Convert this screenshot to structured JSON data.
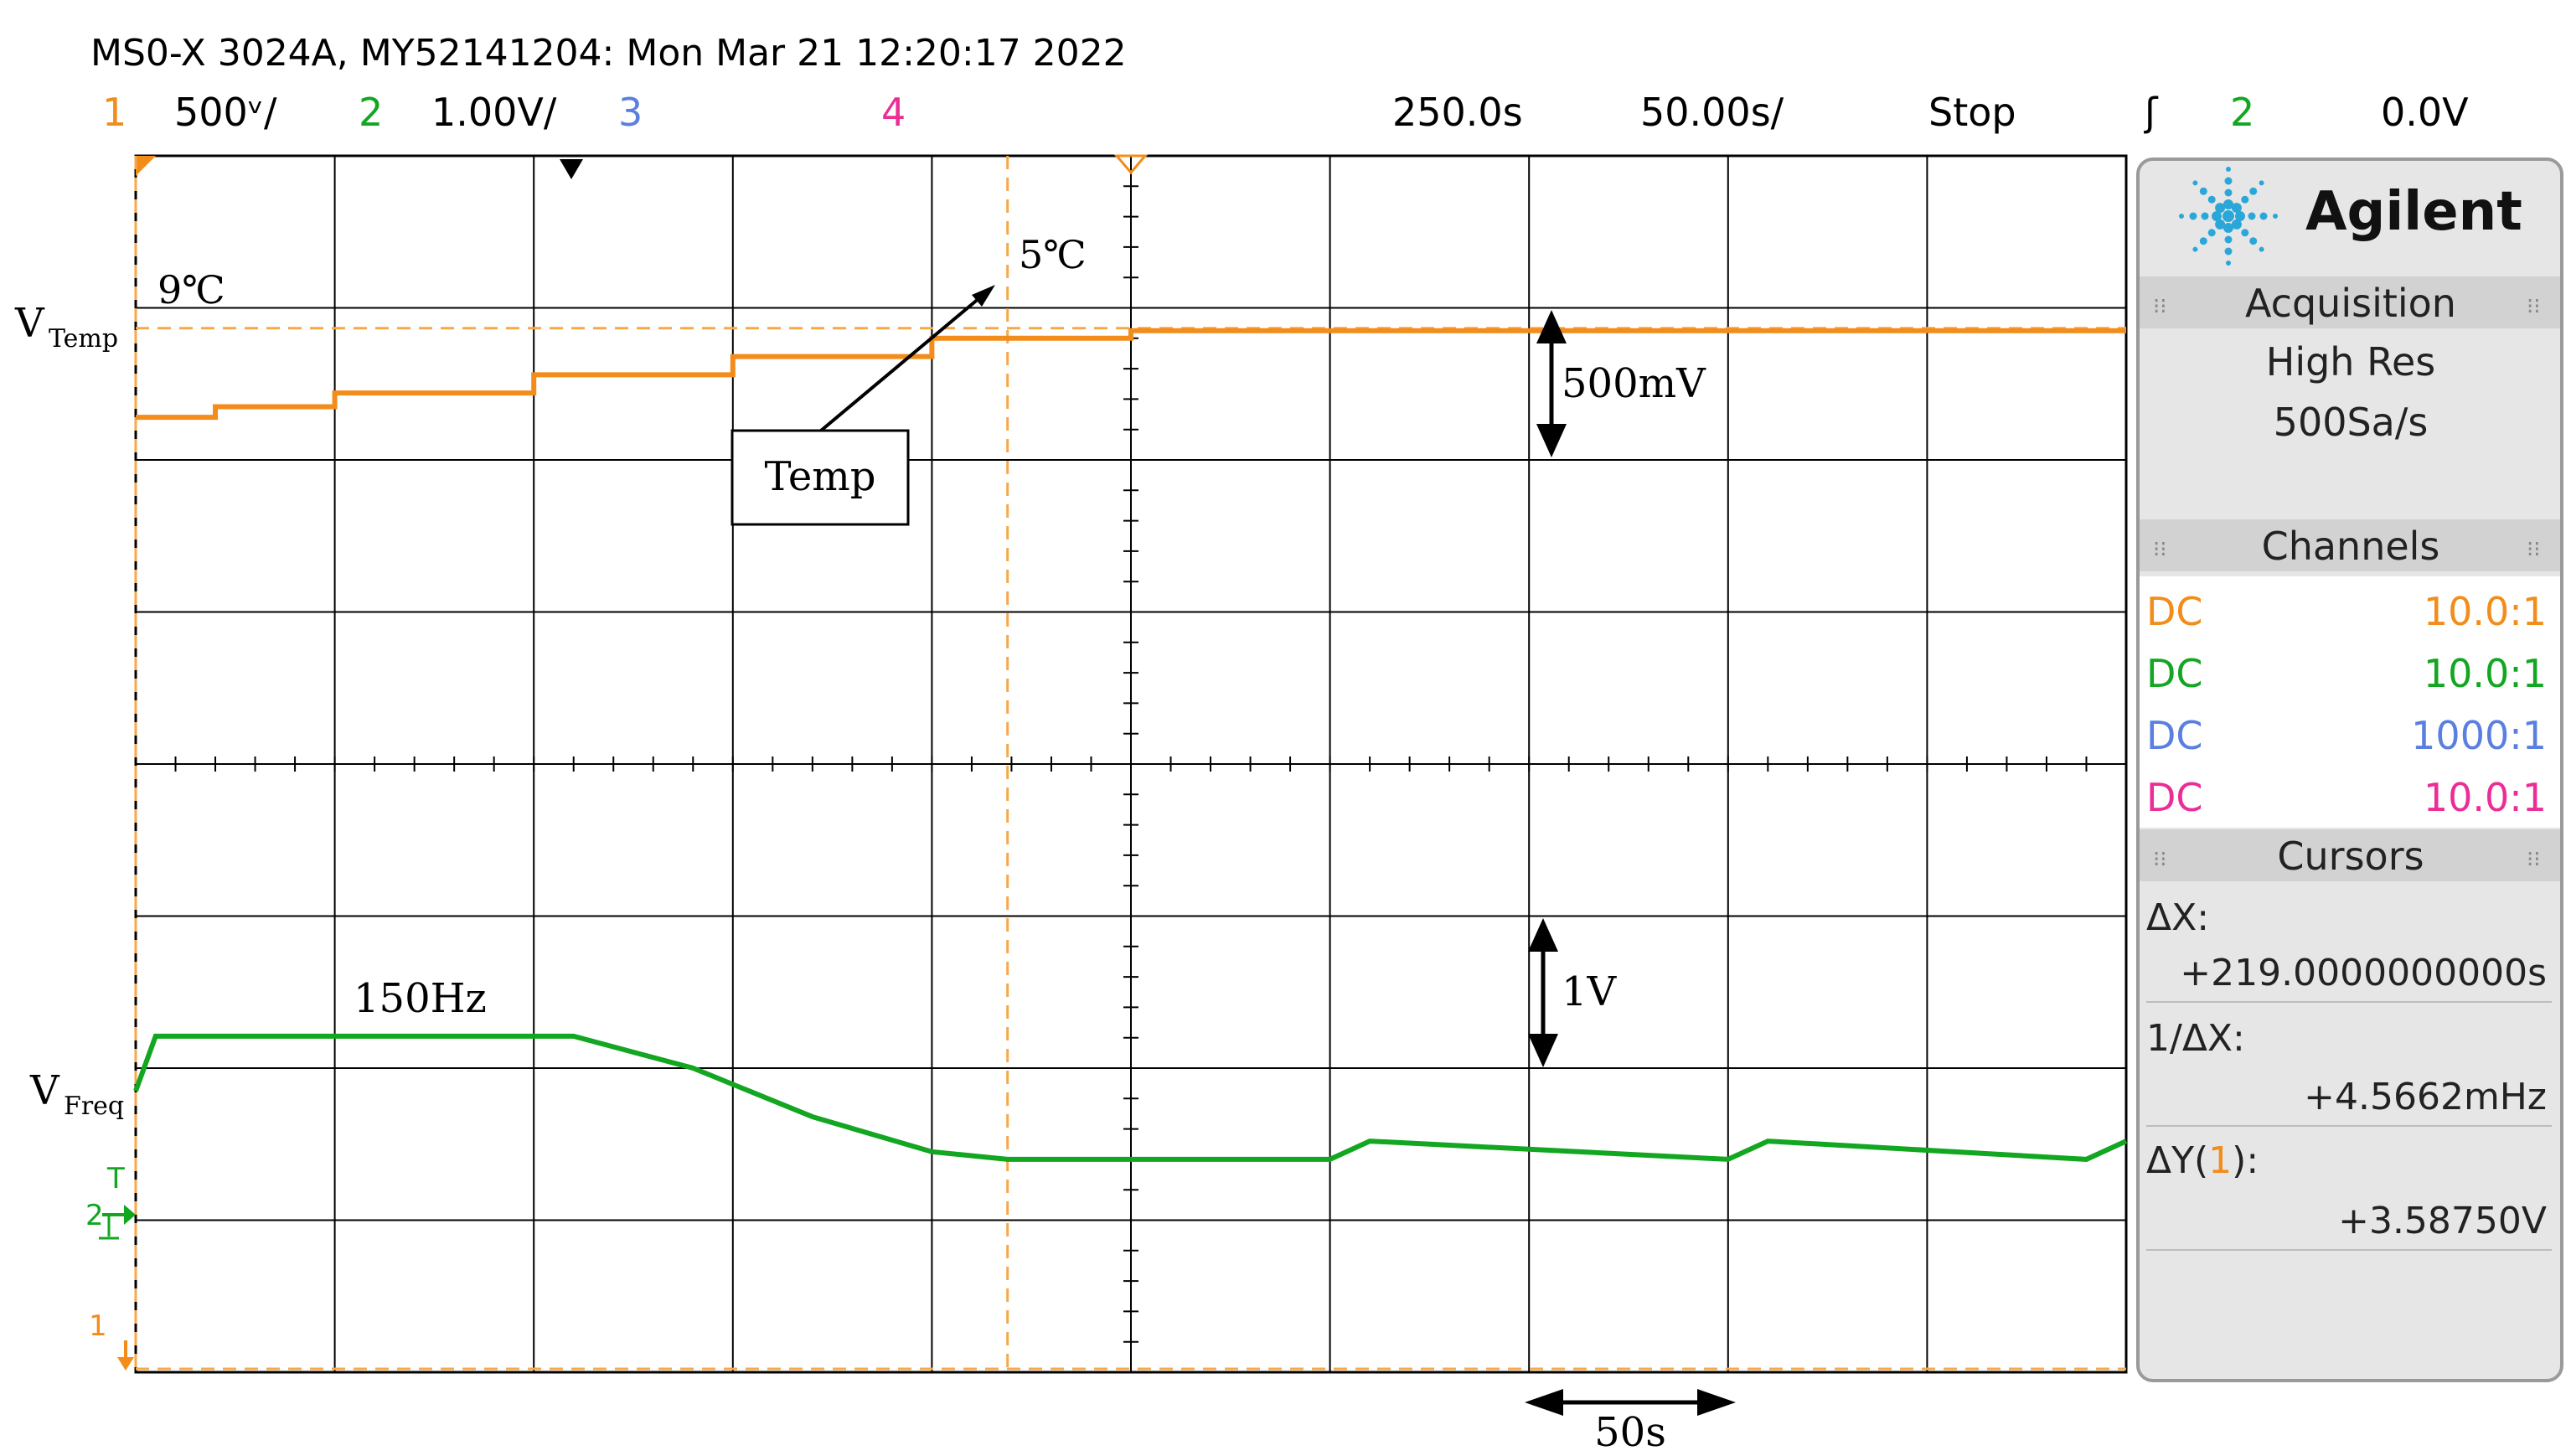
{
  "header": {
    "title": "MS0-X 3024A, MY52141204: Mon Mar 21 12:20:17 2022",
    "ch1": {
      "num": "1",
      "scale": "500ᵛ/"
    },
    "ch2": {
      "num": "2",
      "scale": "1.00V/"
    },
    "ch3": {
      "num": "3"
    },
    "ch4": {
      "num": "4"
    },
    "delay": "250.0s",
    "timebase": "50.00s/",
    "run_state": "Stop",
    "trigger_icon": "ʃ",
    "trigger_channel": "2",
    "trigger_level": "0.0V"
  },
  "colors": {
    "ch1": "#f28c1b",
    "ch2": "#12a621",
    "ch3": "#5b7fe0",
    "ch4": "#ec2d96",
    "grid": "#000000",
    "cursor": "#f7a94a"
  },
  "panel": {
    "brand": "Agilent",
    "logo_icon": "agilent-spark-icon",
    "acquisition": {
      "title": "Acquisition",
      "mode": "High Res",
      "rate": "500Sa/s"
    },
    "channels": {
      "title": "Channels",
      "rows": [
        {
          "coupling": "DC",
          "probe": "10.0:1"
        },
        {
          "coupling": "DC",
          "probe": "10.0:1"
        },
        {
          "coupling": "DC",
          "probe": "1000:1"
        },
        {
          "coupling": "DC",
          "probe": "10.0:1"
        }
      ]
    },
    "cursors": {
      "title": "Cursors",
      "dx_label": "ΔX:",
      "dx_value": "+219.0000000000s",
      "inv_label": "1/ΔX:",
      "inv_value": "+4.5662mHz",
      "dy_label_pre": "ΔY(",
      "dy_channel": "1",
      "dy_label_post": "):",
      "dy_value": "+3.58750V"
    }
  },
  "annotations": {
    "vtemp_main": "V",
    "vtemp_sub": "Temp",
    "vfreq_main": "V",
    "vfreq_sub": "Freq",
    "temp_start": "9℃",
    "temp_end": "5℃",
    "temp_box": "Temp",
    "scale_v1": "500mV",
    "scale_v2": "1V",
    "freq_label": "150Hz",
    "time_scale": "50s"
  },
  "markers": {
    "ch2_ground": "2",
    "ch1_ground": "1",
    "trigger_level_mark": "T"
  },
  "chart_data": {
    "type": "line",
    "title": "",
    "xlabel": "",
    "ylabel": "",
    "x_unit": "s",
    "xlim": [
      0,
      500
    ],
    "x_divisions": 10,
    "y_divisions": 8,
    "cursor_x": [
      0,
      219
    ],
    "series": [
      {
        "name": "Temp",
        "channel": 1,
        "x": [
          0,
          20,
          50,
          100,
          150,
          200,
          250,
          300,
          350,
          400,
          450,
          500
        ],
        "y_div": [
          6.28,
          6.35,
          6.44,
          6.56,
          6.68,
          6.8,
          6.85,
          6.85,
          6.85,
          6.85,
          6.85,
          6.85
        ]
      },
      {
        "name": "Freq",
        "channel": 2,
        "x": [
          0,
          5,
          50,
          110,
          140,
          170,
          200,
          219,
          300,
          310,
          400,
          410,
          490,
          500
        ],
        "y_div": [
          1.85,
          2.21,
          2.21,
          2.21,
          2.0,
          1.68,
          1.45,
          1.4,
          1.4,
          1.52,
          1.4,
          1.52,
          1.4,
          1.52
        ]
      }
    ]
  }
}
